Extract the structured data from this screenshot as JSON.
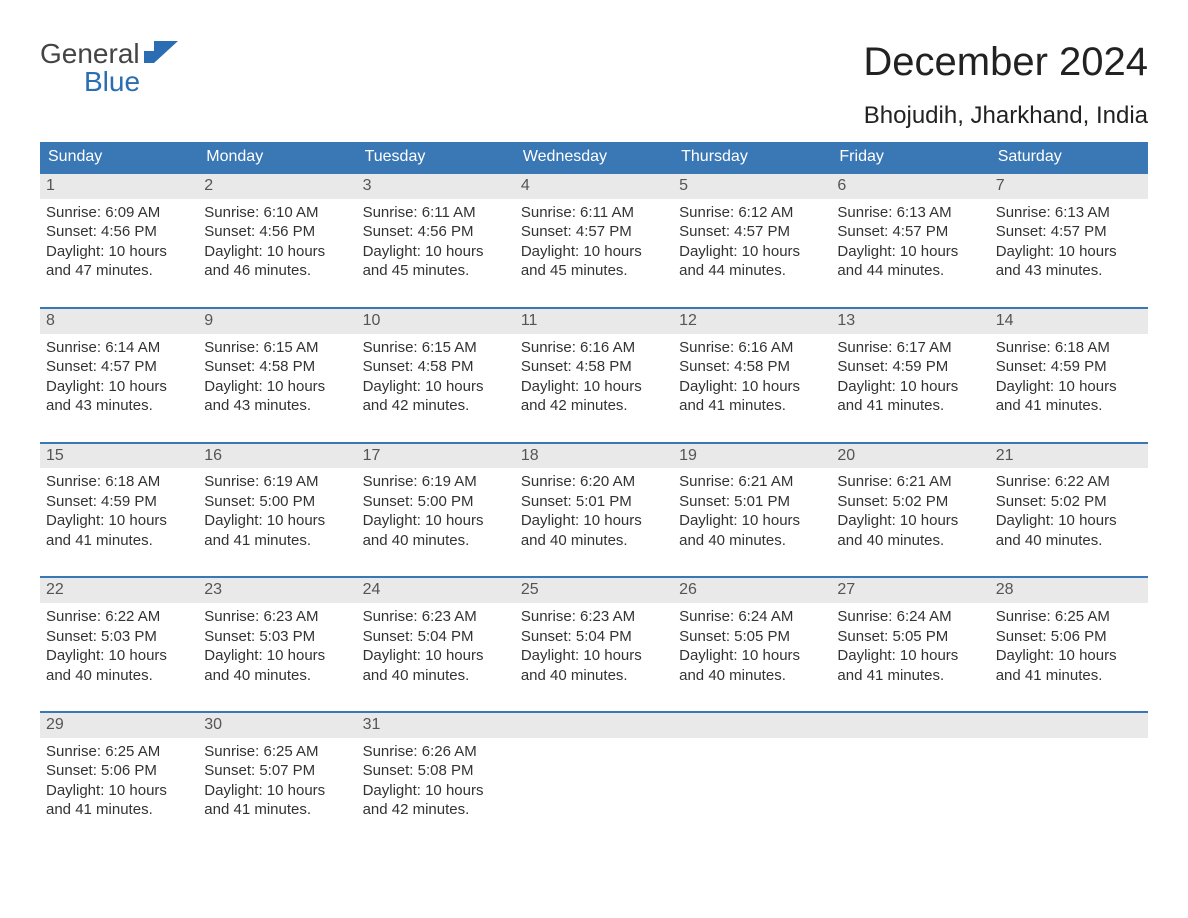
{
  "logo": {
    "general": "General",
    "blue": "Blue"
  },
  "title": "December 2024",
  "location": "Bhojudih, Jharkhand, India",
  "colors": {
    "header_bg": "#3a77b5",
    "header_text": "#ffffff",
    "daynum_bg": "#e9e9e9",
    "week_border": "#3a77b5",
    "logo_blue": "#2a6db3",
    "text": "#333333"
  },
  "day_headers": [
    "Sunday",
    "Monday",
    "Tuesday",
    "Wednesday",
    "Thursday",
    "Friday",
    "Saturday"
  ],
  "labels": {
    "sunrise": "Sunrise:",
    "sunset": "Sunset:",
    "daylight_prefix": "Daylight:"
  },
  "weeks": [
    [
      {
        "n": "1",
        "sunrise": "6:09 AM",
        "sunset": "4:56 PM",
        "daylight": "10 hours and 47 minutes."
      },
      {
        "n": "2",
        "sunrise": "6:10 AM",
        "sunset": "4:56 PM",
        "daylight": "10 hours and 46 minutes."
      },
      {
        "n": "3",
        "sunrise": "6:11 AM",
        "sunset": "4:56 PM",
        "daylight": "10 hours and 45 minutes."
      },
      {
        "n": "4",
        "sunrise": "6:11 AM",
        "sunset": "4:57 PM",
        "daylight": "10 hours and 45 minutes."
      },
      {
        "n": "5",
        "sunrise": "6:12 AM",
        "sunset": "4:57 PM",
        "daylight": "10 hours and 44 minutes."
      },
      {
        "n": "6",
        "sunrise": "6:13 AM",
        "sunset": "4:57 PM",
        "daylight": "10 hours and 44 minutes."
      },
      {
        "n": "7",
        "sunrise": "6:13 AM",
        "sunset": "4:57 PM",
        "daylight": "10 hours and 43 minutes."
      }
    ],
    [
      {
        "n": "8",
        "sunrise": "6:14 AM",
        "sunset": "4:57 PM",
        "daylight": "10 hours and 43 minutes."
      },
      {
        "n": "9",
        "sunrise": "6:15 AM",
        "sunset": "4:58 PM",
        "daylight": "10 hours and 43 minutes."
      },
      {
        "n": "10",
        "sunrise": "6:15 AM",
        "sunset": "4:58 PM",
        "daylight": "10 hours and 42 minutes."
      },
      {
        "n": "11",
        "sunrise": "6:16 AM",
        "sunset": "4:58 PM",
        "daylight": "10 hours and 42 minutes."
      },
      {
        "n": "12",
        "sunrise": "6:16 AM",
        "sunset": "4:58 PM",
        "daylight": "10 hours and 41 minutes."
      },
      {
        "n": "13",
        "sunrise": "6:17 AM",
        "sunset": "4:59 PM",
        "daylight": "10 hours and 41 minutes."
      },
      {
        "n": "14",
        "sunrise": "6:18 AM",
        "sunset": "4:59 PM",
        "daylight": "10 hours and 41 minutes."
      }
    ],
    [
      {
        "n": "15",
        "sunrise": "6:18 AM",
        "sunset": "4:59 PM",
        "daylight": "10 hours and 41 minutes."
      },
      {
        "n": "16",
        "sunrise": "6:19 AM",
        "sunset": "5:00 PM",
        "daylight": "10 hours and 41 minutes."
      },
      {
        "n": "17",
        "sunrise": "6:19 AM",
        "sunset": "5:00 PM",
        "daylight": "10 hours and 40 minutes."
      },
      {
        "n": "18",
        "sunrise": "6:20 AM",
        "sunset": "5:01 PM",
        "daylight": "10 hours and 40 minutes."
      },
      {
        "n": "19",
        "sunrise": "6:21 AM",
        "sunset": "5:01 PM",
        "daylight": "10 hours and 40 minutes."
      },
      {
        "n": "20",
        "sunrise": "6:21 AM",
        "sunset": "5:02 PM",
        "daylight": "10 hours and 40 minutes."
      },
      {
        "n": "21",
        "sunrise": "6:22 AM",
        "sunset": "5:02 PM",
        "daylight": "10 hours and 40 minutes."
      }
    ],
    [
      {
        "n": "22",
        "sunrise": "6:22 AM",
        "sunset": "5:03 PM",
        "daylight": "10 hours and 40 minutes."
      },
      {
        "n": "23",
        "sunrise": "6:23 AM",
        "sunset": "5:03 PM",
        "daylight": "10 hours and 40 minutes."
      },
      {
        "n": "24",
        "sunrise": "6:23 AM",
        "sunset": "5:04 PM",
        "daylight": "10 hours and 40 minutes."
      },
      {
        "n": "25",
        "sunrise": "6:23 AM",
        "sunset": "5:04 PM",
        "daylight": "10 hours and 40 minutes."
      },
      {
        "n": "26",
        "sunrise": "6:24 AM",
        "sunset": "5:05 PM",
        "daylight": "10 hours and 40 minutes."
      },
      {
        "n": "27",
        "sunrise": "6:24 AM",
        "sunset": "5:05 PM",
        "daylight": "10 hours and 41 minutes."
      },
      {
        "n": "28",
        "sunrise": "6:25 AM",
        "sunset": "5:06 PM",
        "daylight": "10 hours and 41 minutes."
      }
    ],
    [
      {
        "n": "29",
        "sunrise": "6:25 AM",
        "sunset": "5:06 PM",
        "daylight": "10 hours and 41 minutes."
      },
      {
        "n": "30",
        "sunrise": "6:25 AM",
        "sunset": "5:07 PM",
        "daylight": "10 hours and 41 minutes."
      },
      {
        "n": "31",
        "sunrise": "6:26 AM",
        "sunset": "5:08 PM",
        "daylight": "10 hours and 42 minutes."
      },
      {
        "empty": true
      },
      {
        "empty": true
      },
      {
        "empty": true
      },
      {
        "empty": true
      }
    ]
  ]
}
